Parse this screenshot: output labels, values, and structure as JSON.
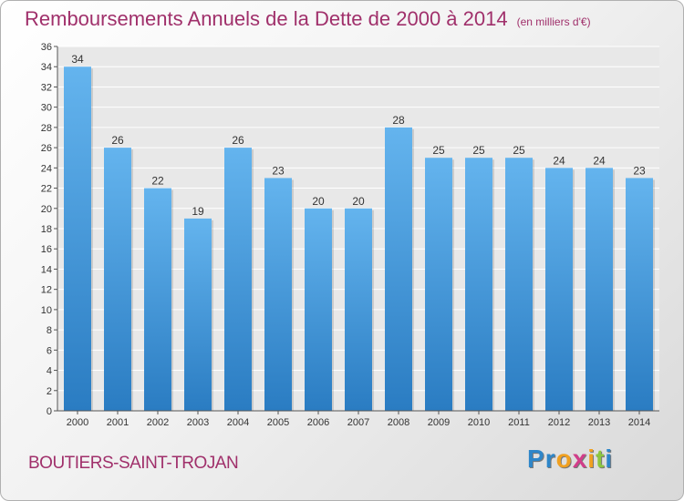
{
  "chart_data": {
    "type": "bar",
    "title": "Remboursements Annuels de la Dette de 2000 à 2014",
    "subtitle": "(en milliers d'€)",
    "categories": [
      "2000",
      "2001",
      "2002",
      "2003",
      "2004",
      "2005",
      "2006",
      "2007",
      "2008",
      "2009",
      "2010",
      "2011",
      "2012",
      "2013",
      "2014"
    ],
    "values": [
      34,
      26,
      22,
      19,
      26,
      23,
      20,
      20,
      28,
      25,
      25,
      25,
      24,
      24,
      23
    ],
    "ylim": [
      0,
      36
    ],
    "yticks": [
      0,
      2,
      4,
      6,
      8,
      10,
      12,
      14,
      16,
      18,
      20,
      22,
      24,
      26,
      28,
      30,
      32,
      34,
      36
    ],
    "xlabel": "",
    "ylabel": "",
    "grid": true,
    "colors": {
      "bar_top": "#64b4ee",
      "bar_bottom": "#2a7cc2",
      "title": "#a0306b"
    }
  },
  "footer": {
    "commune": "BOUTIERS-SAINT-TROJAN",
    "logo_letters": [
      "P",
      "r",
      "o",
      "x",
      "i",
      "t",
      "i"
    ],
    "logo_colors": [
      "#2e86c9",
      "#2e86c9",
      "#f0a020",
      "#d23d8a",
      "#f0a020",
      "#8cc63f",
      "#2e86c9"
    ]
  }
}
